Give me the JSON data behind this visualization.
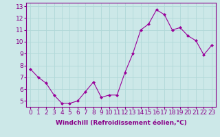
{
  "x": [
    0,
    1,
    2,
    3,
    4,
    5,
    6,
    7,
    8,
    9,
    10,
    11,
    12,
    13,
    14,
    15,
    16,
    17,
    18,
    19,
    20,
    21,
    22,
    23
  ],
  "y": [
    7.7,
    7.0,
    6.5,
    5.5,
    4.8,
    4.8,
    5.0,
    5.8,
    6.6,
    5.3,
    5.5,
    5.5,
    7.4,
    9.0,
    11.0,
    11.5,
    12.7,
    12.3,
    11.0,
    11.2,
    10.5,
    10.1,
    8.9,
    9.7
  ],
  "line_color": "#990099",
  "marker": "D",
  "marker_size": 2.0,
  "bg_color": "#cce8e8",
  "grid_color": "#b0d8d8",
  "ylabel_ticks": [
    5,
    6,
    7,
    8,
    9,
    10,
    11,
    12,
    13
  ],
  "xlim": [
    -0.5,
    23.5
  ],
  "ylim": [
    4.5,
    13.3
  ],
  "xticks": [
    0,
    1,
    2,
    3,
    4,
    5,
    6,
    7,
    8,
    9,
    10,
    11,
    12,
    13,
    14,
    15,
    16,
    17,
    18,
    19,
    20,
    21,
    22,
    23
  ],
  "xlabel": "Windchill (Refroidissement éolien,°C)",
  "xlabel_fontsize": 6.5,
  "tick_fontsize": 6.5,
  "label_color": "#880088"
}
